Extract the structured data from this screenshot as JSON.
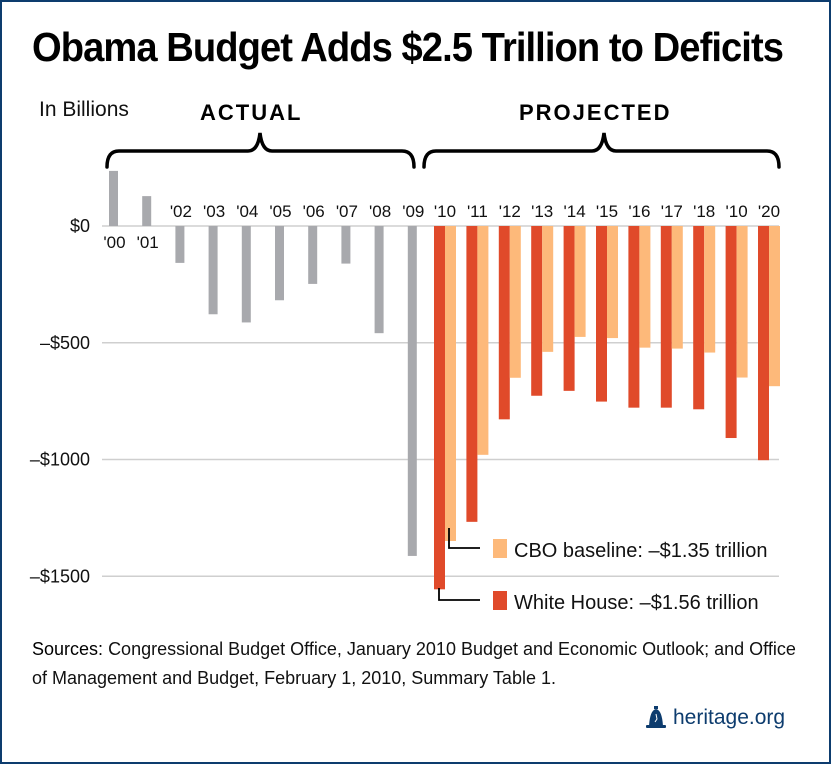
{
  "title": "Obama Budget Adds $2.5 Trillion to Deficits",
  "unit_label": "In Billions",
  "sections": {
    "actual": "ACTUAL",
    "projected": "PROJECTED"
  },
  "sources": {
    "label": "Sources:",
    "text": "Congressional Budget Office, January 2010 Budget and Economic Outlook; and Office of Management and Budget, February 1, 2010, Summary Table 1."
  },
  "brand": {
    "name": "heritage.org",
    "logo_icon": "liberty-bell-icon"
  },
  "colors": {
    "actual": "#a8a9ad",
    "cbo": "#fdb97a",
    "white_house": "#e04a2a",
    "grid": "#cfcfcf",
    "frame": "#0d3c6e"
  },
  "chart_data": {
    "type": "bar",
    "ylabel": "In Billions",
    "ylim": [
      -1600,
      250
    ],
    "yticks": [
      0,
      -500,
      -1000,
      -1500
    ],
    "ytick_labels": [
      "$0",
      "–$500",
      "–$1000",
      "–$1500"
    ],
    "actual": {
      "categories": [
        "'00",
        "'01",
        "'02",
        "'03",
        "'04",
        "'05",
        "'06",
        "'07",
        "'08",
        "'09"
      ],
      "values": [
        236,
        128,
        -158,
        -378,
        -413,
        -318,
        -248,
        -161,
        -459,
        -1413
      ]
    },
    "projected": {
      "categories": [
        "'10",
        "'11",
        "'12",
        "'13",
        "'14",
        "'15",
        "'16",
        "'17",
        "'18",
        "'10",
        "'20"
      ],
      "series": [
        {
          "name": "White House",
          "values": [
            -1556,
            -1267,
            -828,
            -727,
            -706,
            -752,
            -778,
            -778,
            -785,
            -908,
            -1003
          ]
        },
        {
          "name": "CBO baseline",
          "values": [
            -1349,
            -980,
            -650,
            -539,
            -475,
            -480,
            -521,
            -525,
            -542,
            -649,
            -686
          ]
        }
      ]
    },
    "annotations": [
      {
        "series": "CBO baseline",
        "text": "CBO baseline: –$1.35 trillion"
      },
      {
        "series": "White House",
        "text": "White House: –$1.56 trillion"
      }
    ]
  }
}
